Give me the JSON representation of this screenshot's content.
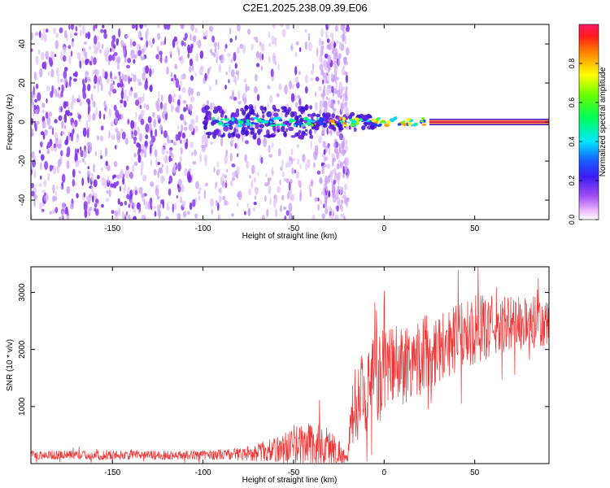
{
  "title": "C2E1.2025.238.09.39.E06",
  "chart_data": [
    {
      "type": "heatmap",
      "title": "C2E1.2025.238.09.39.E06",
      "xlabel": "Height of straight line (km)",
      "ylabel": "Frequency (Hz)",
      "xlim": [
        -195,
        91
      ],
      "ylim": [
        -50,
        50
      ],
      "xticks": [
        -150,
        -100,
        -50,
        0,
        50
      ],
      "yticks": [
        -40,
        -20,
        0,
        20,
        40
      ],
      "xtick_labels": [
        "-150",
        "-100",
        "-50",
        "0",
        "50"
      ],
      "ytick_labels": [
        "-40",
        "-20",
        "0",
        "20",
        "40"
      ],
      "colorbar": {
        "label": "Normalized spectral amplitude",
        "range": [
          0,
          1
        ],
        "ticks": [
          0.0,
          0.2,
          0.4,
          0.6,
          0.8
        ],
        "tick_labels": [
          "0.0",
          "0.2",
          "0.4",
          "0.6",
          "0.8"
        ],
        "colormap": "hsv-rainbow"
      },
      "features": {
        "noise_region_x": [
          -195,
          -20
        ],
        "dense_noise_x": [
          -195,
          -105
        ],
        "signal_frequency_hz": 0,
        "signal_onset_x": -100,
        "coherent_line_from_x": 25,
        "coherent_line_to_x": 91
      }
    },
    {
      "type": "line",
      "xlabel": "Height of straight line (km)",
      "ylabel": "SNR (10 * v/v)",
      "xlim": [
        -195,
        91
      ],
      "ylim": [
        0,
        3450
      ],
      "xticks": [
        -150,
        -100,
        -50,
        0,
        50
      ],
      "yticks": [
        1000,
        2000,
        3000
      ],
      "xtick_labels": [
        "-150",
        "-100",
        "-50",
        "0",
        "50"
      ],
      "ytick_labels": [
        "1000",
        "2000",
        "3000"
      ],
      "series": [
        {
          "name": "SNR",
          "color": "#ee3333",
          "envelope": {
            "x": [
              -195,
              -150,
              -100,
              -80,
              -70,
              -60,
              -55,
              -50,
              -45,
              -40,
              -35,
              -30,
              -25,
              -20,
              -18,
              -15,
              -10,
              -5,
              0,
              10,
              20,
              30,
              40,
              50,
              60,
              70,
              80,
              91
            ],
            "base": [
              150,
              150,
              150,
              170,
              200,
              240,
              280,
              300,
              320,
              310,
              300,
              280,
              200,
              60,
              900,
              1100,
              1300,
              1450,
              1550,
              1750,
              1900,
              2050,
              2200,
              2350,
              2400,
              2450,
              2450,
              2400
            ],
            "spread": [
              80,
              80,
              80,
              110,
              160,
              220,
              280,
              350,
              400,
              450,
              400,
              350,
              250,
              60,
              600,
              700,
              750,
              800,
              800,
              750,
              700,
              650,
              600,
              600,
              550,
              500,
              500,
              450
            ]
          }
        }
      ]
    }
  ]
}
